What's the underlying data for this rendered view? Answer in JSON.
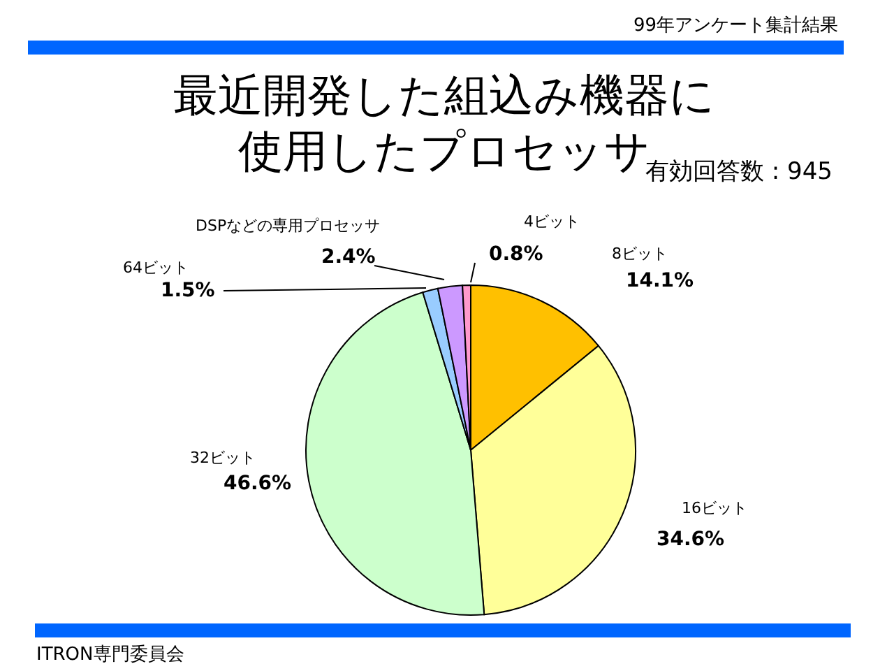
{
  "chart_data": {
    "type": "pie",
    "title": "最近開発した組込み機器に使用したプロセッサ",
    "subtitle": "有効回答数 : 945",
    "categories": [
      "8ビット",
      "16ビット",
      "32ビット",
      "64ビット",
      "DSPなどの専用プロセッサ",
      "4ビット"
    ],
    "values": [
      14.1,
      34.6,
      46.6,
      1.5,
      2.4,
      0.8
    ],
    "colors": [
      "#ffc000",
      "#ffff99",
      "#ccffcc",
      "#99ccff",
      "#cc99ff",
      "#ff99cc"
    ],
    "value_labels": [
      "14.1%",
      "34.6%",
      "46.6%",
      "1.5%",
      "2.4%",
      "0.8%"
    ],
    "annotations": [
      "99年アンケート集計結果",
      "ITRON専門委員会"
    ]
  }
}
